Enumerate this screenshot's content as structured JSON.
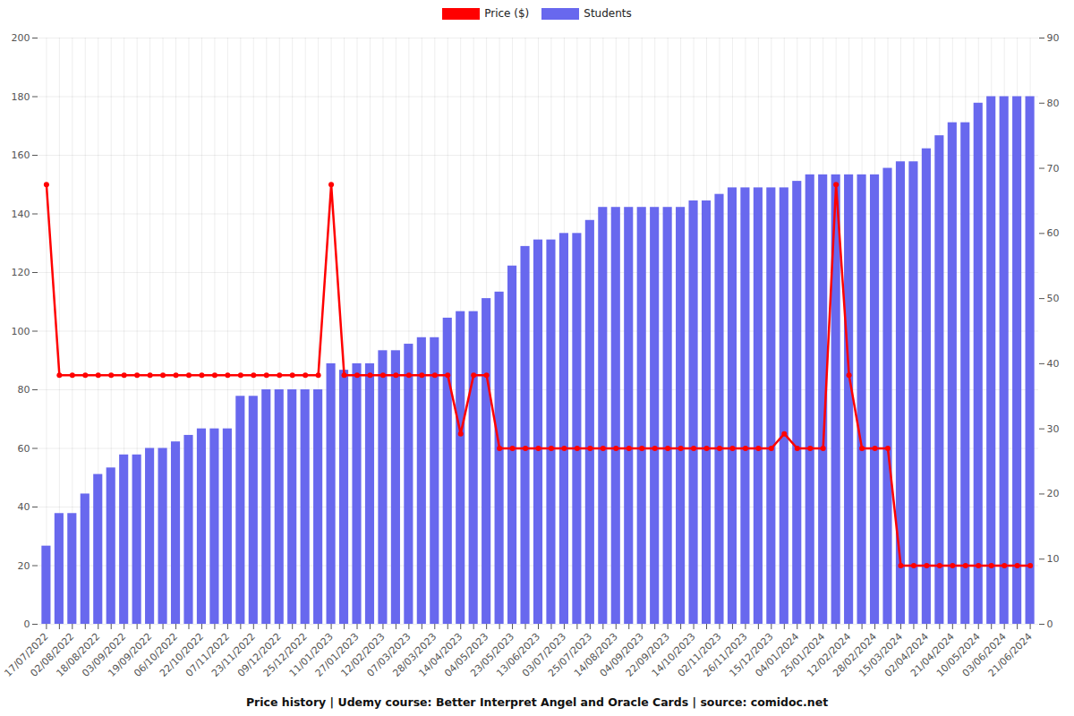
{
  "chart_data": {
    "type": "bar",
    "title": "Price history | Udemy course: Better Interpret Angel and Oracle Cards | source: comidoc.net",
    "categories": [
      "17/07/2022",
      null,
      "02/08/2022",
      null,
      "18/08/2022",
      null,
      "03/09/2022",
      null,
      "19/09/2022",
      null,
      "06/10/2022",
      null,
      "22/10/2022",
      null,
      "07/11/2022",
      null,
      "23/11/2022",
      null,
      "09/12/2022",
      null,
      "25/12/2022",
      null,
      "11/01/2023",
      null,
      "27/01/2023",
      null,
      "12/02/2023",
      null,
      "07/03/2023",
      null,
      "28/03/2023",
      null,
      "14/04/2023",
      null,
      "04/05/2023",
      null,
      "23/05/2023",
      null,
      "13/06/2023",
      null,
      "03/07/2023",
      null,
      "25/07/2023",
      null,
      "14/08/2023",
      null,
      "04/09/2023",
      null,
      "22/09/2023",
      null,
      "14/10/2023",
      null,
      "02/11/2023",
      null,
      "26/11/2023",
      null,
      "15/12/2023",
      null,
      "04/01/2024",
      null,
      "25/01/2024",
      null,
      "12/02/2024",
      null,
      "28/02/2024",
      null,
      "15/03/2024",
      null,
      "02/04/2024",
      null,
      "21/04/2024",
      null,
      "10/05/2024",
      null,
      "03/06/2024",
      null,
      "21/06/2024"
    ],
    "series": [
      {
        "name": "Price ($)",
        "type": "line",
        "color": "#ff0000",
        "marker": "circle",
        "axis": "y",
        "values": [
          150,
          85,
          85,
          85,
          85,
          85,
          85,
          85,
          85,
          85,
          85,
          85,
          85,
          85,
          85,
          85,
          85,
          85,
          85,
          85,
          85,
          85,
          150,
          85,
          85,
          85,
          85,
          85,
          85,
          85,
          85,
          85,
          65,
          85,
          85,
          60,
          60,
          60,
          60,
          60,
          60,
          60,
          60,
          60,
          60,
          60,
          60,
          60,
          60,
          60,
          60,
          60,
          60,
          60,
          60,
          60,
          60,
          65,
          60,
          60,
          60,
          150,
          85,
          60,
          60,
          60,
          20,
          20,
          20,
          20,
          20,
          20,
          20,
          20,
          20,
          20,
          20
        ]
      },
      {
        "name": "Students",
        "type": "bar",
        "color": "#6868ee",
        "axis": "y2",
        "values": [
          12,
          17,
          17,
          20,
          23,
          24,
          26,
          26,
          27,
          27,
          28,
          29,
          30,
          30,
          30,
          35,
          35,
          36,
          36,
          36,
          36,
          36,
          40,
          39,
          40,
          40,
          42,
          42,
          43,
          44,
          44,
          47,
          48,
          48,
          50,
          51,
          55,
          58,
          59,
          59,
          60,
          60,
          62,
          64,
          64,
          64,
          64,
          64,
          64,
          64,
          65,
          65,
          66,
          67,
          67,
          67,
          67,
          67,
          68,
          69,
          69,
          69,
          69,
          69,
          69,
          70,
          71,
          71,
          73,
          75,
          77,
          77,
          80,
          81,
          81,
          81,
          81
        ]
      }
    ],
    "ylim": [
      0,
      200
    ],
    "yticks": [
      0,
      20,
      40,
      60,
      80,
      100,
      120,
      140,
      160,
      180,
      200
    ],
    "y2lim": [
      0,
      90
    ],
    "y2ticks": [
      0,
      10,
      20,
      30,
      40,
      50,
      60,
      70,
      80,
      90
    ],
    "grid": true,
    "legend": "top"
  }
}
